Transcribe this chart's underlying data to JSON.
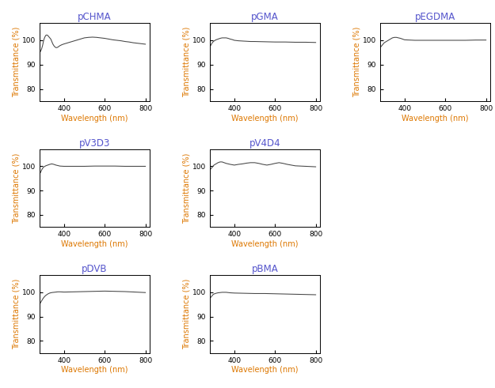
{
  "titles": [
    "pCHMA",
    "pGMA",
    "pEGDMA",
    "pV3D3",
    "pV4D4",
    "pDVB",
    "pBMA"
  ],
  "title_color": "#5555cc",
  "ylabel": "Transmittance (%)",
  "xlabel": "Wavelength (nm)",
  "ylabel_color": "#dd7700",
  "xlabel_color": "#dd7700",
  "tick_label_color": "black",
  "tick_spine_color": "black",
  "line_color": "#444444",
  "xlim": [
    280,
    820
  ],
  "ylim": [
    75,
    107
  ],
  "yticks": [
    80,
    90,
    100
  ],
  "xticks": [
    400,
    600,
    800
  ],
  "curves": {
    "pCHMA": {
      "x": [
        280,
        285,
        290,
        295,
        300,
        305,
        310,
        315,
        320,
        325,
        330,
        335,
        340,
        345,
        350,
        355,
        360,
        365,
        370,
        375,
        380,
        390,
        400,
        420,
        440,
        460,
        480,
        500,
        520,
        540,
        560,
        580,
        600,
        620,
        640,
        660,
        680,
        700,
        720,
        740,
        760,
        780,
        800
      ],
      "y": [
        95.0,
        95.5,
        96.5,
        98.0,
        100.0,
        101.2,
        102.0,
        102.2,
        102.0,
        101.5,
        101.0,
        100.5,
        99.5,
        98.5,
        97.8,
        97.3,
        97.0,
        97.0,
        97.2,
        97.5,
        97.8,
        98.2,
        98.5,
        99.0,
        99.5,
        100.0,
        100.5,
        101.0,
        101.2,
        101.3,
        101.2,
        101.0,
        100.8,
        100.5,
        100.2,
        100.0,
        99.8,
        99.5,
        99.3,
        99.0,
        98.8,
        98.6,
        98.4
      ]
    },
    "pGMA": {
      "x": [
        280,
        285,
        290,
        295,
        300,
        310,
        320,
        330,
        340,
        350,
        360,
        370,
        380,
        390,
        400,
        420,
        440,
        460,
        480,
        500,
        550,
        600,
        650,
        700,
        750,
        800
      ],
      "y": [
        97.5,
        98.0,
        98.8,
        99.3,
        99.7,
        100.2,
        100.5,
        100.8,
        101.0,
        101.0,
        101.0,
        100.8,
        100.5,
        100.3,
        100.0,
        99.8,
        99.7,
        99.6,
        99.5,
        99.5,
        99.4,
        99.3,
        99.3,
        99.2,
        99.2,
        99.1
      ]
    },
    "pEGDMA": {
      "x": [
        280,
        285,
        290,
        295,
        300,
        310,
        320,
        330,
        340,
        350,
        360,
        370,
        380,
        390,
        400,
        450,
        500,
        550,
        600,
        650,
        700,
        750,
        800
      ],
      "y": [
        97.0,
        97.5,
        98.0,
        98.5,
        99.0,
        99.5,
        100.0,
        100.5,
        101.0,
        101.2,
        101.2,
        101.0,
        100.8,
        100.5,
        100.2,
        100.0,
        100.0,
        100.0,
        100.0,
        100.0,
        100.0,
        100.1,
        100.1
      ]
    },
    "pV3D3": {
      "x": [
        280,
        285,
        290,
        295,
        300,
        310,
        320,
        330,
        340,
        350,
        360,
        370,
        380,
        400,
        450,
        500,
        550,
        600,
        650,
        700,
        750,
        800
      ],
      "y": [
        97.0,
        97.5,
        98.5,
        99.2,
        99.7,
        100.2,
        100.5,
        100.8,
        101.0,
        100.8,
        100.5,
        100.3,
        100.1,
        100.0,
        100.0,
        100.0,
        100.1,
        100.1,
        100.1,
        100.0,
        100.0,
        100.0
      ]
    },
    "pV4D4": {
      "x": [
        280,
        285,
        290,
        295,
        300,
        310,
        320,
        330,
        340,
        350,
        360,
        370,
        380,
        400,
        420,
        440,
        460,
        480,
        500,
        520,
        540,
        560,
        580,
        600,
        620,
        640,
        660,
        680,
        700,
        750,
        800
      ],
      "y": [
        98.5,
        99.0,
        99.5,
        100.0,
        100.5,
        101.0,
        101.5,
        101.8,
        101.8,
        101.5,
        101.2,
        101.0,
        100.8,
        100.5,
        100.8,
        101.0,
        101.3,
        101.5,
        101.5,
        101.2,
        100.8,
        100.5,
        100.8,
        101.2,
        101.5,
        101.2,
        100.8,
        100.5,
        100.2,
        100.0,
        99.8
      ]
    },
    "pDVB": {
      "x": [
        280,
        285,
        290,
        295,
        300,
        305,
        310,
        315,
        320,
        325,
        330,
        335,
        340,
        350,
        360,
        370,
        380,
        400,
        450,
        500,
        550,
        600,
        650,
        700,
        750,
        800
      ],
      "y": [
        95.0,
        95.8,
        96.5,
        97.2,
        97.8,
        98.3,
        98.7,
        99.0,
        99.3,
        99.5,
        99.7,
        99.8,
        99.9,
        100.0,
        100.1,
        100.2,
        100.2,
        100.1,
        100.2,
        100.3,
        100.4,
        100.5,
        100.4,
        100.3,
        100.1,
        99.9
      ]
    },
    "pBMA": {
      "x": [
        280,
        285,
        290,
        295,
        300,
        310,
        320,
        330,
        340,
        350,
        360,
        370,
        380,
        400,
        450,
        500,
        550,
        600,
        650,
        700,
        750,
        800
      ],
      "y": [
        97.5,
        98.0,
        98.5,
        99.0,
        99.3,
        99.6,
        99.8,
        99.9,
        100.0,
        100.0,
        100.0,
        99.9,
        99.8,
        99.7,
        99.6,
        99.5,
        99.5,
        99.4,
        99.3,
        99.2,
        99.1,
        99.0
      ]
    }
  }
}
